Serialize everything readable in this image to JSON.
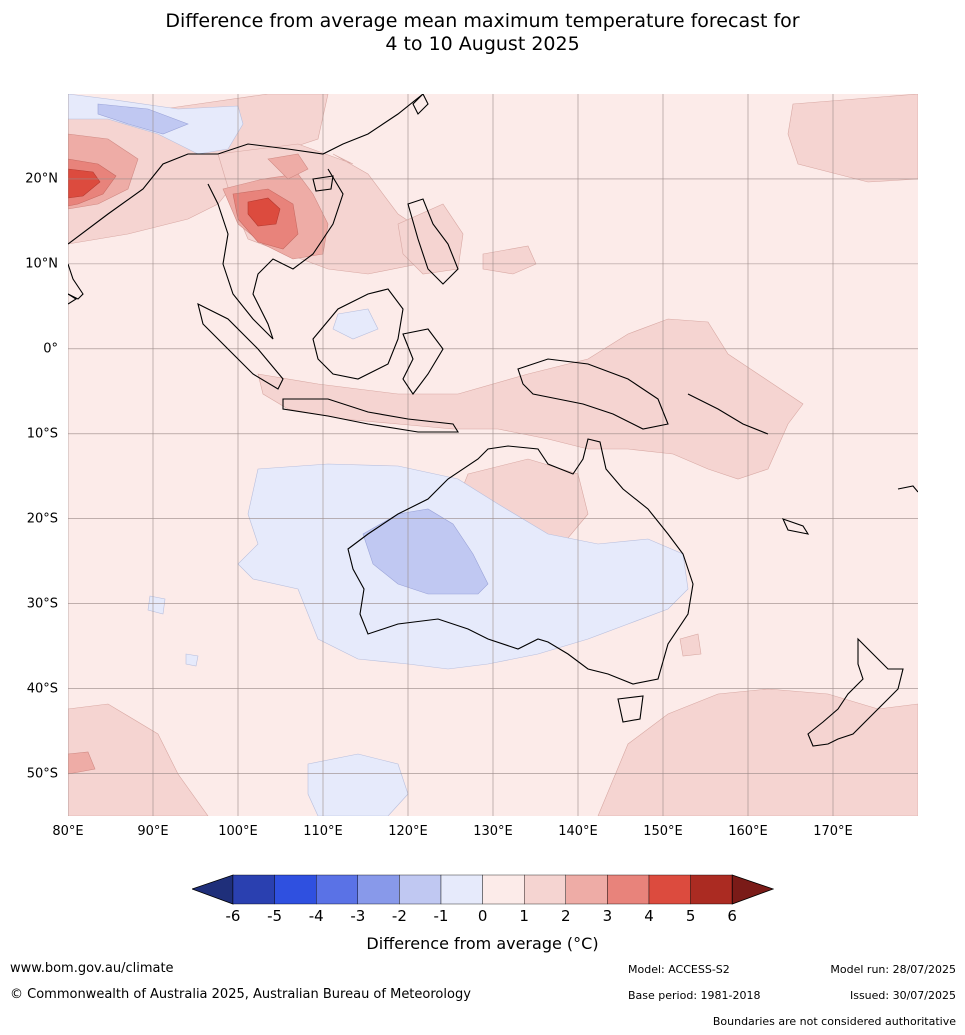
{
  "title": {
    "line1": "Difference from average mean maximum temperature forecast for",
    "line2": "4 to 10 August 2025"
  },
  "axes": {
    "lat_ticks": [
      "20°N",
      "10°N",
      "0°",
      "10°S",
      "20°S",
      "30°S",
      "40°S",
      "50°S"
    ],
    "lat_values": [
      20,
      10,
      0,
      -10,
      -20,
      -30,
      -40,
      -50
    ],
    "lon_ticks": [
      "80°E",
      "90°E",
      "100°E",
      "110°E",
      "120°E",
      "130°E",
      "140°E",
      "150°E",
      "160°E",
      "170°E"
    ],
    "lon_values": [
      80,
      90,
      100,
      110,
      120,
      130,
      140,
      150,
      160,
      170
    ],
    "lon_range": [
      80,
      180
    ],
    "lat_range": [
      -55,
      30
    ]
  },
  "colorbar": {
    "title": "Difference from average ($^\\circ$C)",
    "title_display": "Difference from average (°C)",
    "ticks": [
      "-6",
      "-5",
      "-4",
      "-3",
      "-2",
      "-1",
      "0",
      "1",
      "2",
      "3",
      "4",
      "5",
      "6"
    ],
    "colors": [
      "#1f2f7a",
      "#2a40b0",
      "#2f50e0",
      "#5a72e6",
      "#8899ea",
      "#c0c8f2",
      "#e6eafb",
      "#fcebe9",
      "#f5d4d1",
      "#eeaca6",
      "#e8837b",
      "#dc4b3e",
      "#ab2b22",
      "#7a1b18"
    ]
  },
  "map_colors": {
    "base": "#fcebe9",
    "warm1": "#f5d4d1",
    "warm2": "#eeaca6",
    "warm3": "#e8837b",
    "warm4": "#dc4b3e",
    "cool1": "#e6eafb",
    "cool2": "#c0c8f2",
    "cool3": "#8899ea",
    "grid": "#9a8a88",
    "coast": "#000000"
  },
  "footer": {
    "website": "www.bom.gov.au/climate",
    "copyright": "© Commonwealth of Australia 2025, Australian Bureau of Meteorology",
    "model": "Model: ACCESS-S2",
    "base_period": "Base period: 1981-2018",
    "model_run": "Model run: 28/07/2025",
    "issued": "Issued: 30/07/2025",
    "disclaimer": "Boundaries are not considered authoritative"
  }
}
